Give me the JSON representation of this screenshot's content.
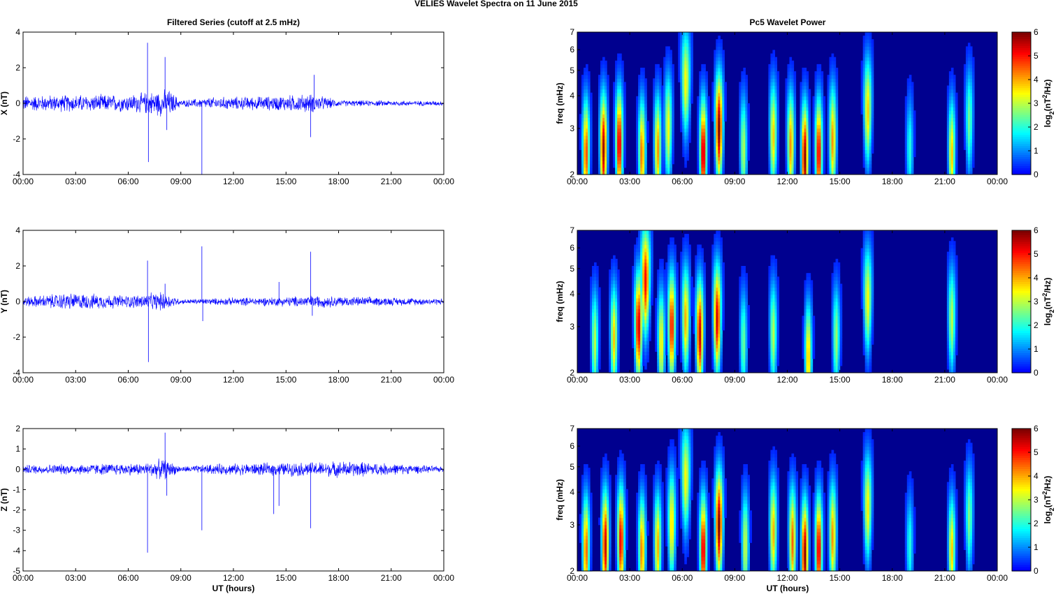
{
  "figure": {
    "suptitle": "VELIES Wavelet Spectra on 11 June      2015",
    "left_title": "Filtered Series (cutoff at 2.5 mHz)",
    "right_title": "Pc5 Wavelet Power",
    "xlabel": "UT (hours)",
    "x_ticks": [
      "00:00",
      "03:00",
      "06:00",
      "09:00",
      "12:00",
      "15:00",
      "18:00",
      "21:00",
      "00:00"
    ],
    "colorbar_label": "log2(nT2/Hz)",
    "colorbar_ticks": [
      "0",
      "1",
      "2",
      "3",
      "4",
      "5",
      "6"
    ],
    "freq_ylabel": "freq (mHz)",
    "freq_ticks": [
      "2",
      "3",
      "4",
      "5",
      "6",
      "7"
    ]
  },
  "chart_data": [
    {
      "type": "line",
      "ylabel": "X (nT)",
      "ylim": [
        -4,
        4
      ],
      "y_ticks": [
        "-4",
        "-2",
        "0",
        "2",
        "4"
      ],
      "xlim_hours": [
        0,
        24
      ],
      "color": "#0000ff",
      "noise_envelope": [
        {
          "t": 0,
          "amp": 0.5
        },
        {
          "t": 3,
          "amp": 0.55
        },
        {
          "t": 6,
          "amp": 0.55
        },
        {
          "t": 7,
          "amp": 0.7
        },
        {
          "t": 8.3,
          "amp": 0.9
        },
        {
          "t": 9,
          "amp": 0.2
        },
        {
          "t": 11,
          "amp": 0.4
        },
        {
          "t": 14,
          "amp": 0.45
        },
        {
          "t": 16.5,
          "amp": 0.6
        },
        {
          "t": 18,
          "amp": 0.2
        },
        {
          "t": 24,
          "amp": 0.15
        }
      ],
      "spikes": [
        {
          "t": 7.1,
          "y": 3.4
        },
        {
          "t": 7.15,
          "y": -3.3
        },
        {
          "t": 8.1,
          "y": 2.6
        },
        {
          "t": 8.2,
          "y": -1.5
        },
        {
          "t": 10.2,
          "y": -4.0
        },
        {
          "t": 16.4,
          "y": -1.9
        },
        {
          "t": 16.6,
          "y": 1.6
        }
      ]
    },
    {
      "type": "line",
      "ylabel": "Y (nT)",
      "ylim": [
        -4,
        4
      ],
      "y_ticks": [
        "-4",
        "-2",
        "0",
        "2",
        "4"
      ],
      "xlim_hours": [
        0,
        24
      ],
      "color": "#0000ff",
      "noise_envelope": [
        {
          "t": 0,
          "amp": 0.3
        },
        {
          "t": 2.5,
          "amp": 0.55
        },
        {
          "t": 6,
          "amp": 0.4
        },
        {
          "t": 8,
          "amp": 0.6
        },
        {
          "t": 9,
          "amp": 0.15
        },
        {
          "t": 12,
          "amp": 0.25
        },
        {
          "t": 15,
          "amp": 0.3
        },
        {
          "t": 16.5,
          "amp": 0.4
        },
        {
          "t": 19,
          "amp": 0.3
        },
        {
          "t": 24,
          "amp": 0.2
        }
      ],
      "spikes": [
        {
          "t": 7.1,
          "y": 2.3
        },
        {
          "t": 7.15,
          "y": -3.4
        },
        {
          "t": 8.1,
          "y": 1.0
        },
        {
          "t": 10.2,
          "y": 3.1
        },
        {
          "t": 10.25,
          "y": -1.1
        },
        {
          "t": 14.6,
          "y": 1.1
        },
        {
          "t": 16.4,
          "y": 2.8
        },
        {
          "t": 16.5,
          "y": -0.8
        }
      ]
    },
    {
      "type": "line",
      "ylabel": "Z (nT)",
      "ylim": [
        -5,
        2
      ],
      "y_ticks": [
        "-5",
        "-4",
        "-3",
        "-2",
        "-1",
        "0",
        "1",
        "2"
      ],
      "xlim_hours": [
        0,
        24
      ],
      "color": "#0000ff",
      "noise_envelope": [
        {
          "t": 0,
          "amp": 0.25
        },
        {
          "t": 3,
          "amp": 0.3
        },
        {
          "t": 7,
          "amp": 0.35
        },
        {
          "t": 8,
          "amp": 0.6
        },
        {
          "t": 9,
          "amp": 0.15
        },
        {
          "t": 11,
          "amp": 0.3
        },
        {
          "t": 14,
          "amp": 0.35
        },
        {
          "t": 16.5,
          "amp": 0.4
        },
        {
          "t": 18.5,
          "amp": 0.45
        },
        {
          "t": 24,
          "amp": 0.15
        }
      ],
      "spikes": [
        {
          "t": 7.1,
          "y": -4.1
        },
        {
          "t": 8.1,
          "y": 1.8
        },
        {
          "t": 8.2,
          "y": -1.3
        },
        {
          "t": 10.2,
          "y": -3.0
        },
        {
          "t": 14.3,
          "y": -2.2
        },
        {
          "t": 14.6,
          "y": -1.8
        },
        {
          "t": 16.4,
          "y": -2.9
        }
      ]
    },
    {
      "type": "heatmap",
      "title": "Pc5 Wavelet Power",
      "ylabel": "freq (mHz)",
      "y_scale": "log",
      "ylim": [
        2,
        7
      ],
      "xlim_hours": [
        0,
        24
      ],
      "zlim": [
        0,
        6
      ],
      "colormap": "jet",
      "background": "#00008f",
      "features": [
        {
          "t": 0.5,
          "f": 2.4,
          "z": 4.8
        },
        {
          "t": 1.5,
          "f": 2.5,
          "z": 5.8
        },
        {
          "t": 2.4,
          "f": 2.6,
          "z": 5.6
        },
        {
          "t": 3.7,
          "f": 2.4,
          "z": 4.5
        },
        {
          "t": 4.6,
          "f": 2.5,
          "z": 4.2
        },
        {
          "t": 5.2,
          "f": 3.0,
          "z": 3.5
        },
        {
          "t": 6.2,
          "f": 4.5,
          "z": 3.5
        },
        {
          "t": 7.2,
          "f": 2.4,
          "z": 5.8
        },
        {
          "t": 8.1,
          "f": 3.0,
          "z": 6.0
        },
        {
          "t": 9.5,
          "f": 2.5,
          "z": 3.0
        },
        {
          "t": 11.2,
          "f": 2.8,
          "z": 3.8
        },
        {
          "t": 12.2,
          "f": 2.6,
          "z": 4.2
        },
        {
          "t": 13.0,
          "f": 2.3,
          "z": 6.0
        },
        {
          "t": 13.8,
          "f": 2.4,
          "z": 5.5
        },
        {
          "t": 14.6,
          "f": 2.7,
          "z": 4.2
        },
        {
          "t": 16.6,
          "f": 3.5,
          "z": 3.8
        },
        {
          "t": 19.0,
          "f": 2.5,
          "z": 2.0
        },
        {
          "t": 21.4,
          "f": 2.4,
          "z": 3.8
        },
        {
          "t": 22.4,
          "f": 3.2,
          "z": 2.5
        }
      ]
    },
    {
      "type": "heatmap",
      "title": "",
      "ylabel": "freq (mHz)",
      "y_scale": "log",
      "ylim": [
        2,
        7
      ],
      "xlim_hours": [
        0,
        24
      ],
      "zlim": [
        0,
        6
      ],
      "colormap": "jet",
      "background": "#00008f",
      "features": [
        {
          "t": 1.0,
          "f": 2.6,
          "z": 3.0
        },
        {
          "t": 2.1,
          "f": 2.7,
          "z": 3.8
        },
        {
          "t": 3.5,
          "f": 3.0,
          "z": 5.6
        },
        {
          "t": 3.9,
          "f": 4.5,
          "z": 5.2
        },
        {
          "t": 4.8,
          "f": 2.6,
          "z": 3.6
        },
        {
          "t": 5.4,
          "f": 3.0,
          "z": 5.2
        },
        {
          "t": 6.2,
          "f": 3.2,
          "z": 4.0
        },
        {
          "t": 7.0,
          "f": 2.8,
          "z": 5.6
        },
        {
          "t": 8.0,
          "f": 3.2,
          "z": 5.5
        },
        {
          "t": 9.5,
          "f": 2.6,
          "z": 2.5
        },
        {
          "t": 11.2,
          "f": 2.8,
          "z": 3.0
        },
        {
          "t": 13.2,
          "f": 2.3,
          "z": 4.0
        },
        {
          "t": 14.8,
          "f": 2.7,
          "z": 2.8
        },
        {
          "t": 16.6,
          "f": 3.8,
          "z": 3.5
        },
        {
          "t": 21.4,
          "f": 3.2,
          "z": 3.0
        }
      ]
    },
    {
      "type": "heatmap",
      "title": "",
      "ylabel": "freq (mHz)",
      "y_scale": "log",
      "ylim": [
        2,
        7
      ],
      "xlim_hours": [
        0,
        24
      ],
      "zlim": [
        0,
        6
      ],
      "colormap": "jet",
      "background": "#00008f",
      "features": [
        {
          "t": 0.5,
          "f": 2.4,
          "z": 4.6
        },
        {
          "t": 1.6,
          "f": 2.5,
          "z": 5.6
        },
        {
          "t": 2.5,
          "f": 2.6,
          "z": 5.4
        },
        {
          "t": 3.7,
          "f": 2.4,
          "z": 4.4
        },
        {
          "t": 4.6,
          "f": 2.5,
          "z": 4.0
        },
        {
          "t": 5.4,
          "f": 3.0,
          "z": 3.8
        },
        {
          "t": 6.2,
          "f": 4.5,
          "z": 3.5
        },
        {
          "t": 7.2,
          "f": 2.4,
          "z": 5.6
        },
        {
          "t": 8.1,
          "f": 3.0,
          "z": 6.0
        },
        {
          "t": 9.6,
          "f": 2.5,
          "z": 3.2
        },
        {
          "t": 11.2,
          "f": 2.8,
          "z": 4.0
        },
        {
          "t": 12.3,
          "f": 2.6,
          "z": 4.5
        },
        {
          "t": 13.0,
          "f": 2.3,
          "z": 6.0
        },
        {
          "t": 13.8,
          "f": 2.4,
          "z": 5.6
        },
        {
          "t": 14.6,
          "f": 2.7,
          "z": 4.2
        },
        {
          "t": 16.6,
          "f": 3.5,
          "z": 3.6
        },
        {
          "t": 19.0,
          "f": 2.5,
          "z": 2.0
        },
        {
          "t": 21.4,
          "f": 2.4,
          "z": 3.8
        },
        {
          "t": 22.4,
          "f": 3.2,
          "z": 2.6
        }
      ]
    }
  ]
}
